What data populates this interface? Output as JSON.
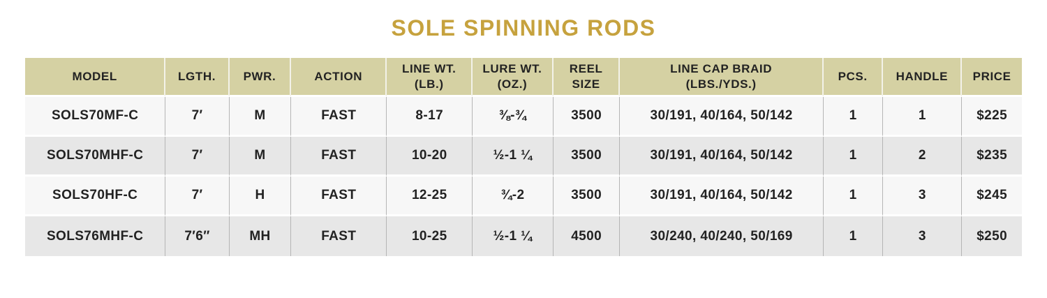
{
  "title": "SOLE SPINNING RODS",
  "colors": {
    "title": "#C6A23E",
    "header_bg": "#D5D1A3",
    "row_light": "#F7F7F7",
    "row_dark": "#E7E7E7",
    "text": "#222222",
    "divider": "#B5B5B5"
  },
  "table": {
    "columns": [
      {
        "key": "model",
        "label": "MODEL"
      },
      {
        "key": "lgth",
        "label": "LGTH."
      },
      {
        "key": "pwr",
        "label": "PWR."
      },
      {
        "key": "action",
        "label": "ACTION"
      },
      {
        "key": "line-wt",
        "label": "LINE WT.\n(LB.)"
      },
      {
        "key": "lure-wt",
        "label": "LURE WT.\n(OZ.)"
      },
      {
        "key": "reel-size",
        "label": "REEL\nSIZE"
      },
      {
        "key": "line-cap-braid",
        "label": "LINE CAP BRAID\n(LBS./YDS.)"
      },
      {
        "key": "pcs",
        "label": "PCS."
      },
      {
        "key": "handle",
        "label": "HANDLE"
      },
      {
        "key": "price",
        "label": "PRICE"
      }
    ],
    "rows": [
      [
        "SOLS70MF-C",
        "7′",
        "M",
        "FAST",
        "8-17",
        "⅜-¾",
        "3500",
        "30/191, 40/164, 50/142",
        "1",
        "1",
        "$225"
      ],
      [
        "SOLS70MHF-C",
        "7′",
        "M",
        "FAST",
        "10-20",
        "½-1 ¼",
        "3500",
        "30/191, 40/164, 50/142",
        "1",
        "2",
        "$235"
      ],
      [
        "SOLS70HF-C",
        "7′",
        "H",
        "FAST",
        "12-25",
        "¾-2",
        "3500",
        "30/191, 40/164, 50/142",
        "1",
        "3",
        "$245"
      ],
      [
        "SOLS76MHF-C",
        "7′6″",
        "MH",
        "FAST",
        "10-25",
        "½-1 ¼",
        "4500",
        "30/240, 40/240, 50/169",
        "1",
        "3",
        "$250"
      ]
    ]
  }
}
